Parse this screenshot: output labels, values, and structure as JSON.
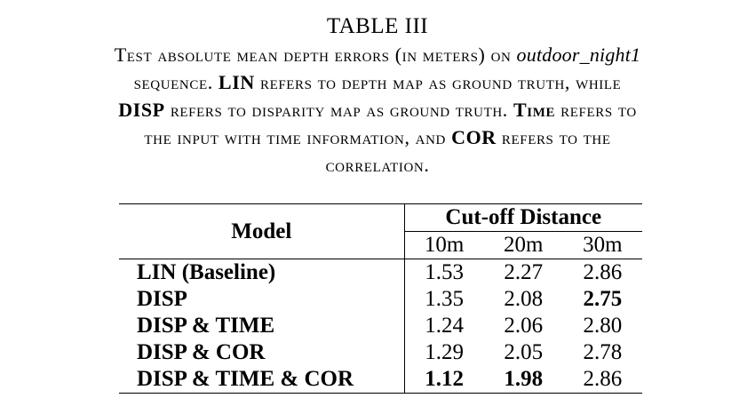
{
  "caption": {
    "label": "TABLE III",
    "line1_a": "Test absolute mean depth errors (in meters) on ",
    "line1_b": "outdoor_night1",
    "line2_a": "sequence. ",
    "line2_b": "LIN",
    "line2_c": " refers to depth map as ground truth, while",
    "line3_a": "DISP",
    "line3_b": " refers to disparity map as ground truth. ",
    "line3_c": "Time",
    "line3_d": " refers to",
    "line4_a": "the input with time information, and ",
    "line4_b": "COR",
    "line4_c": " refers to the",
    "line5": "correlation."
  },
  "table": {
    "model_header": "Model",
    "group_header": "Cut-off Distance",
    "columns": [
      "10m",
      "20m",
      "30m"
    ],
    "rows": [
      {
        "model": "LIN (Baseline)",
        "values": [
          "1.53",
          "2.27",
          "2.86"
        ],
        "bold": [
          false,
          false,
          false
        ]
      },
      {
        "model": "DISP",
        "values": [
          "1.35",
          "2.08",
          "2.75"
        ],
        "bold": [
          false,
          false,
          true
        ]
      },
      {
        "model": "DISP & TIME",
        "values": [
          "1.24",
          "2.06",
          "2.80"
        ],
        "bold": [
          false,
          false,
          false
        ]
      },
      {
        "model": "DISP & COR",
        "values": [
          "1.29",
          "2.05",
          "2.78"
        ],
        "bold": [
          false,
          false,
          false
        ]
      },
      {
        "model": "DISP & TIME & COR",
        "values": [
          "1.12",
          "1.98",
          "2.86"
        ],
        "bold": [
          true,
          true,
          false
        ]
      }
    ]
  }
}
